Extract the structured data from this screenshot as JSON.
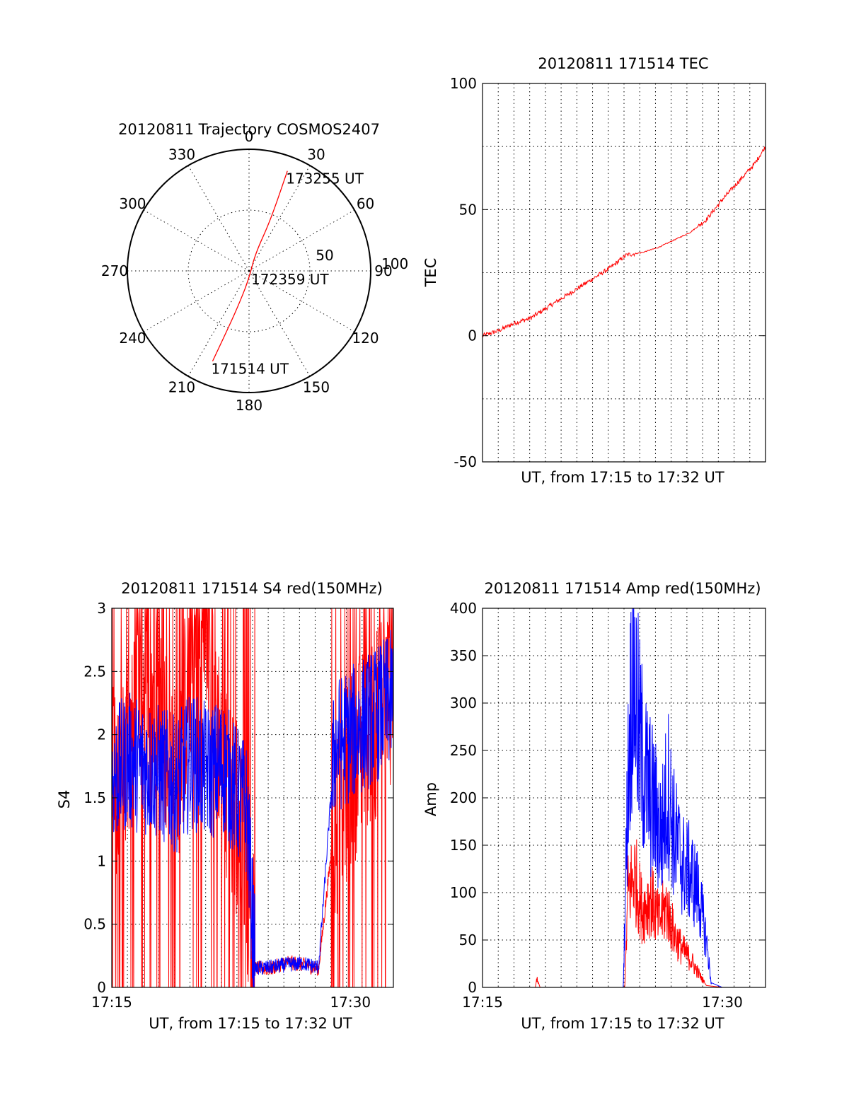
{
  "chart_data": [
    {
      "type": "polar",
      "title": "20120811 Trajectory COSMOS2407",
      "angle_labels": [
        "0",
        "30",
        "60",
        "90",
        "120",
        "150",
        "180",
        "210",
        "240",
        "270",
        "300",
        "330"
      ],
      "radius_labels": [
        "50",
        "100"
      ],
      "grid": true,
      "series": [
        {
          "color": "#ff0000",
          "points": [
            {
              "azimuth": 202,
              "zenith_angle": 80
            },
            {
              "azimuth": 200,
              "zenith_angle": 50
            },
            {
              "azimuth": 196,
              "zenith_angle": 25
            },
            {
              "azimuth": 180,
              "zenith_angle": 6
            },
            {
              "azimuth": 20,
              "zenith_angle": 15
            },
            {
              "azimuth": 23,
              "zenith_angle": 45
            },
            {
              "azimuth": 21,
              "zenith_angle": 88
            }
          ]
        }
      ],
      "annotations": [
        {
          "text": "171514 UT",
          "azimuth": 202,
          "zenith_angle": 80
        },
        {
          "text": "172359 UT",
          "azimuth": 100,
          "zenith_angle": 3
        },
        {
          "text": "173255 UT",
          "azimuth": 21,
          "zenith_angle": 88
        }
      ]
    },
    {
      "type": "line",
      "title": "20120811 171514 TEC",
      "xlabel": "UT, from 17:15 to 17:32 UT",
      "ylabel": "TEC",
      "xlim": [
        0,
        17.7
      ],
      "ylim": [
        -50,
        100
      ],
      "yticks": [
        "-50",
        "0",
        "50",
        "100"
      ],
      "xticks": [],
      "grid": true,
      "series": [
        {
          "color": "#ff0000",
          "x": [
            0,
            1,
            2,
            3,
            4,
            5,
            6,
            7,
            8,
            9,
            10,
            11,
            12,
            13,
            14,
            15,
            16,
            17,
            17.7
          ],
          "y": [
            0,
            2,
            5,
            7,
            11,
            15,
            19,
            23,
            27,
            32,
            33,
            35,
            38,
            41,
            46,
            54,
            61,
            68,
            75
          ]
        }
      ]
    },
    {
      "type": "line",
      "title": "20120811 171514 S4 red(150MHz)",
      "xlabel": "UT, from 17:15 to 17:32 UT",
      "ylabel": "S4",
      "xlim": [
        0,
        17.7
      ],
      "ylim": [
        0,
        3
      ],
      "yticks": [
        "0",
        "0.5",
        "1",
        "1.5",
        "2",
        "2.5",
        "3"
      ],
      "xticks": [
        {
          "label": "17:15",
          "x": 0
        },
        {
          "label": "17:30",
          "x": 15
        }
      ],
      "grid": true,
      "series": [
        {
          "color": "#ff0000",
          "x": [
            0,
            1,
            2,
            3,
            4,
            5,
            6,
            7,
            8,
            8.5,
            9,
            10,
            11,
            12,
            13,
            14,
            15,
            16,
            17,
            17.7
          ],
          "y": [
            1.6,
            1.8,
            2.5,
            2.2,
            1.6,
            2.6,
            2.9,
            1.7,
            1.3,
            0.9,
            0.15,
            0.15,
            0.2,
            0.18,
            0.15,
            1.3,
            1.7,
            2.0,
            2.2,
            2.3
          ]
        },
        {
          "color": "#0000ff",
          "x": [
            0,
            1,
            2,
            3,
            4,
            5,
            6,
            7,
            8,
            8.5,
            9,
            10,
            11,
            12,
            13,
            14,
            15,
            16,
            17,
            17.7
          ],
          "y": [
            1.65,
            1.8,
            1.75,
            1.7,
            1.6,
            1.8,
            1.7,
            1.75,
            1.5,
            1.4,
            0.15,
            0.16,
            0.18,
            0.19,
            0.16,
            1.9,
            2.0,
            2.1,
            2.2,
            2.3
          ]
        }
      ]
    },
    {
      "type": "line",
      "title": "20120811 171514 Amp red(150MHz)",
      "xlabel": "UT, from 17:15 to 17:32 UT",
      "ylabel": "Amp",
      "xlim": [
        0,
        17.7
      ],
      "ylim": [
        0,
        400
      ],
      "yticks": [
        "0",
        "50",
        "100",
        "150",
        "200",
        "250",
        "300",
        "350",
        "400"
      ],
      "xticks": [
        {
          "label": "17:15",
          "x": 0
        },
        {
          "label": "17:30",
          "x": 15
        }
      ],
      "grid": true,
      "series": [
        {
          "color": "#ff0000",
          "x": [
            0,
            3.3,
            3.4,
            3.6,
            8.9,
            9.1,
            9.5,
            10,
            10.5,
            11,
            11.5,
            12,
            12.5,
            13,
            13.5,
            14,
            15,
            17.7
          ],
          "y": [
            0,
            0,
            10,
            0,
            0,
            100,
            120,
            80,
            95,
            70,
            85,
            55,
            40,
            30,
            15,
            2,
            0,
            0
          ]
        },
        {
          "color": "#0000ff",
          "x": [
            0,
            8.8,
            9.1,
            9.4,
            9.8,
            10.2,
            10.7,
            11.2,
            11.6,
            12,
            12.5,
            13,
            13.5,
            14,
            14.3,
            15,
            17.7
          ],
          "y": [
            0,
            0,
            220,
            350,
            260,
            220,
            190,
            160,
            210,
            160,
            130,
            120,
            100,
            50,
            5,
            0,
            0
          ]
        }
      ]
    }
  ]
}
